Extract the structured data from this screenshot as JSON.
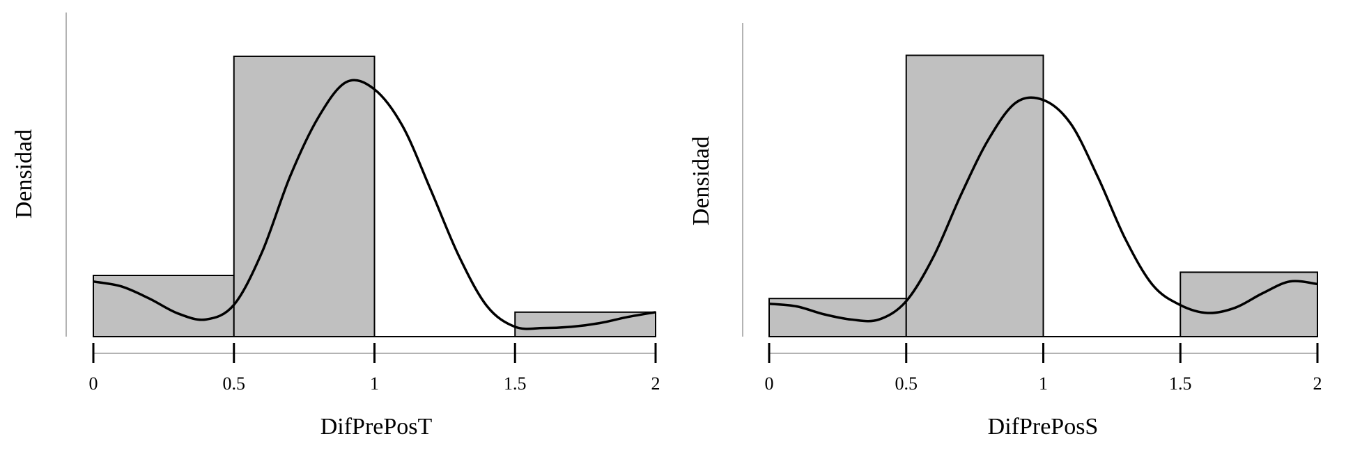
{
  "chart_data": [
    {
      "type": "histogram",
      "xlabel": "DifPrePosT",
      "ylabel": "Densidad",
      "xlim": [
        0,
        2
      ],
      "x_ticks": [
        0,
        0.5,
        1,
        1.5,
        2
      ],
      "x_tick_labels": [
        "0",
        "0.5",
        "1",
        "1.5",
        "2"
      ],
      "ylim": [
        0,
        2.2
      ],
      "bins": [
        {
          "x0": 0,
          "x1": 0.5,
          "density": 0.5
        },
        {
          "x0": 0.5,
          "x1": 1,
          "density": 2.29
        },
        {
          "x0": 1,
          "x1": 1.5,
          "density": 0
        },
        {
          "x0": 1.5,
          "x1": 2,
          "density": 0.2
        }
      ],
      "density_curve": {
        "x": [
          0,
          0.1,
          0.2,
          0.3,
          0.4,
          0.5,
          0.6,
          0.7,
          0.8,
          0.9,
          1.0,
          1.1,
          1.2,
          1.3,
          1.4,
          1.5,
          1.6,
          1.7,
          1.8,
          1.9,
          2.0
        ],
        "y": [
          0.45,
          0.41,
          0.31,
          0.19,
          0.14,
          0.26,
          0.69,
          1.31,
          1.79,
          2.08,
          2.02,
          1.72,
          1.2,
          0.66,
          0.25,
          0.08,
          0.07,
          0.08,
          0.11,
          0.16,
          0.2
        ]
      },
      "colors": {
        "bar_fill": "#c0c0c0",
        "bar_stroke": "#000000",
        "curve": "#000000"
      }
    },
    {
      "type": "histogram",
      "xlabel": "DifPrePosS",
      "ylabel": "Densidad",
      "xlim": [
        0,
        2
      ],
      "x_ticks": [
        0,
        0.5,
        1,
        1.5,
        2
      ],
      "x_tick_labels": [
        "0",
        "0.5",
        "1",
        "1.5",
        "2"
      ],
      "ylim": [
        0,
        2.2
      ],
      "bins": [
        {
          "x0": 0,
          "x1": 0.5,
          "density": 0.29
        },
        {
          "x0": 0.5,
          "x1": 1,
          "density": 2.14
        },
        {
          "x0": 1,
          "x1": 1.5,
          "density": 0
        },
        {
          "x0": 1.5,
          "x1": 2,
          "density": 0.49
        }
      ],
      "density_curve": {
        "x": [
          0,
          0.1,
          0.2,
          0.3,
          0.4,
          0.5,
          0.6,
          0.7,
          0.8,
          0.9,
          1.0,
          1.1,
          1.2,
          1.3,
          1.4,
          1.5,
          1.6,
          1.7,
          1.8,
          1.9,
          2.0
        ],
        "y": [
          0.25,
          0.23,
          0.17,
          0.13,
          0.13,
          0.27,
          0.61,
          1.08,
          1.5,
          1.78,
          1.8,
          1.62,
          1.21,
          0.74,
          0.39,
          0.24,
          0.18,
          0.22,
          0.33,
          0.42,
          0.4
        ]
      },
      "colors": {
        "bar_fill": "#c0c0c0",
        "bar_stroke": "#000000",
        "curve": "#000000"
      }
    }
  ]
}
